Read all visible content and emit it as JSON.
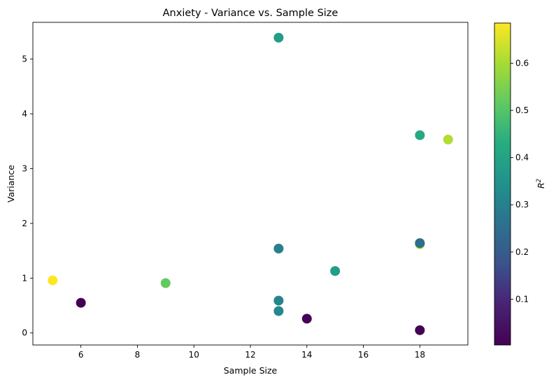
{
  "chart_data": {
    "type": "scatter",
    "title": "Anxiety - Variance vs. Sample Size",
    "xlabel": "Sample Size",
    "ylabel": "Variance",
    "xlim": [
      4.3,
      19.7
    ],
    "ylim": [
      -0.22,
      5.67
    ],
    "xticks": [
      6,
      8,
      10,
      12,
      14,
      16,
      18
    ],
    "yticks": [
      0,
      1,
      2,
      3,
      4,
      5
    ],
    "grid": false,
    "colorbar": {
      "label_base": "R",
      "label_sup": "2",
      "range": [
        0.003,
        0.685
      ],
      "ticks": [
        0.1,
        0.2,
        0.3,
        0.4,
        0.5,
        0.6
      ],
      "colormap": "viridis"
    },
    "points": [
      {
        "x": 5,
        "y": 0.96,
        "r2": 0.685
      },
      {
        "x": 6,
        "y": 0.55,
        "r2": 0.003
      },
      {
        "x": 9,
        "y": 0.91,
        "r2": 0.52
      },
      {
        "x": 13,
        "y": 5.39,
        "r2": 0.38
      },
      {
        "x": 13,
        "y": 1.54,
        "r2": 0.3
      },
      {
        "x": 13,
        "y": 0.59,
        "r2": 0.31
      },
      {
        "x": 13,
        "y": 0.4,
        "r2": 0.32
      },
      {
        "x": 14,
        "y": 0.26,
        "r2": 0.01
      },
      {
        "x": 15,
        "y": 1.13,
        "r2": 0.38
      },
      {
        "x": 18,
        "y": 3.61,
        "r2": 0.42
      },
      {
        "x": 18,
        "y": 1.62,
        "r2": 0.6
      },
      {
        "x": 18,
        "y": 1.64,
        "r2": 0.25
      },
      {
        "x": 18,
        "y": 0.05,
        "r2": 0.005
      },
      {
        "x": 19,
        "y": 3.53,
        "r2": 0.61
      }
    ]
  }
}
